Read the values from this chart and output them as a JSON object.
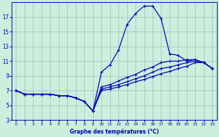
{
  "xlabel": "Graphe des températures (°C)",
  "bg_color": "#cceedd",
  "line_color": "#0000bb",
  "grid_color": "#99bbbb",
  "x_hours": [
    0,
    1,
    2,
    3,
    4,
    5,
    6,
    7,
    8,
    9,
    10,
    11,
    12,
    13,
    14,
    15,
    16,
    17,
    18,
    19,
    20,
    21,
    22,
    23
  ],
  "temp_main": [
    7.0,
    6.5,
    6.5,
    6.5,
    6.5,
    6.3,
    6.3,
    6.0,
    5.5,
    4.2,
    9.5,
    10.5,
    12.5,
    16.0,
    17.5,
    18.5,
    18.5,
    16.8,
    12.0,
    11.8,
    11.0,
    11.2,
    10.8,
    10.0
  ],
  "temp_line2": [
    7.0,
    6.5,
    6.5,
    6.5,
    6.5,
    6.3,
    6.3,
    6.0,
    5.5,
    4.2,
    7.5,
    7.8,
    8.3,
    8.8,
    9.2,
    9.8,
    10.2,
    10.8,
    11.0,
    11.0,
    11.2,
    11.2,
    10.8,
    10.0
  ],
  "temp_line3": [
    7.0,
    6.5,
    6.5,
    6.5,
    6.5,
    6.3,
    6.3,
    6.0,
    5.5,
    4.2,
    7.2,
    7.5,
    7.8,
    8.2,
    8.6,
    9.0,
    9.5,
    10.0,
    10.2,
    10.5,
    10.8,
    11.0,
    10.8,
    10.0
  ],
  "temp_line4": [
    7.0,
    6.5,
    6.5,
    6.5,
    6.5,
    6.3,
    6.3,
    6.0,
    5.5,
    4.2,
    7.0,
    7.2,
    7.5,
    7.8,
    8.2,
    8.5,
    8.9,
    9.3,
    9.6,
    10.0,
    10.3,
    10.8,
    10.8,
    10.0
  ],
  "ylim": [
    3,
    19
  ],
  "xlim_min": -0.5,
  "xlim_max": 23.5,
  "yticks": [
    3,
    5,
    7,
    9,
    11,
    13,
    15,
    17
  ],
  "xticks": [
    0,
    1,
    2,
    3,
    4,
    5,
    6,
    7,
    8,
    9,
    10,
    11,
    12,
    13,
    14,
    15,
    16,
    17,
    18,
    19,
    20,
    21,
    22,
    23
  ]
}
